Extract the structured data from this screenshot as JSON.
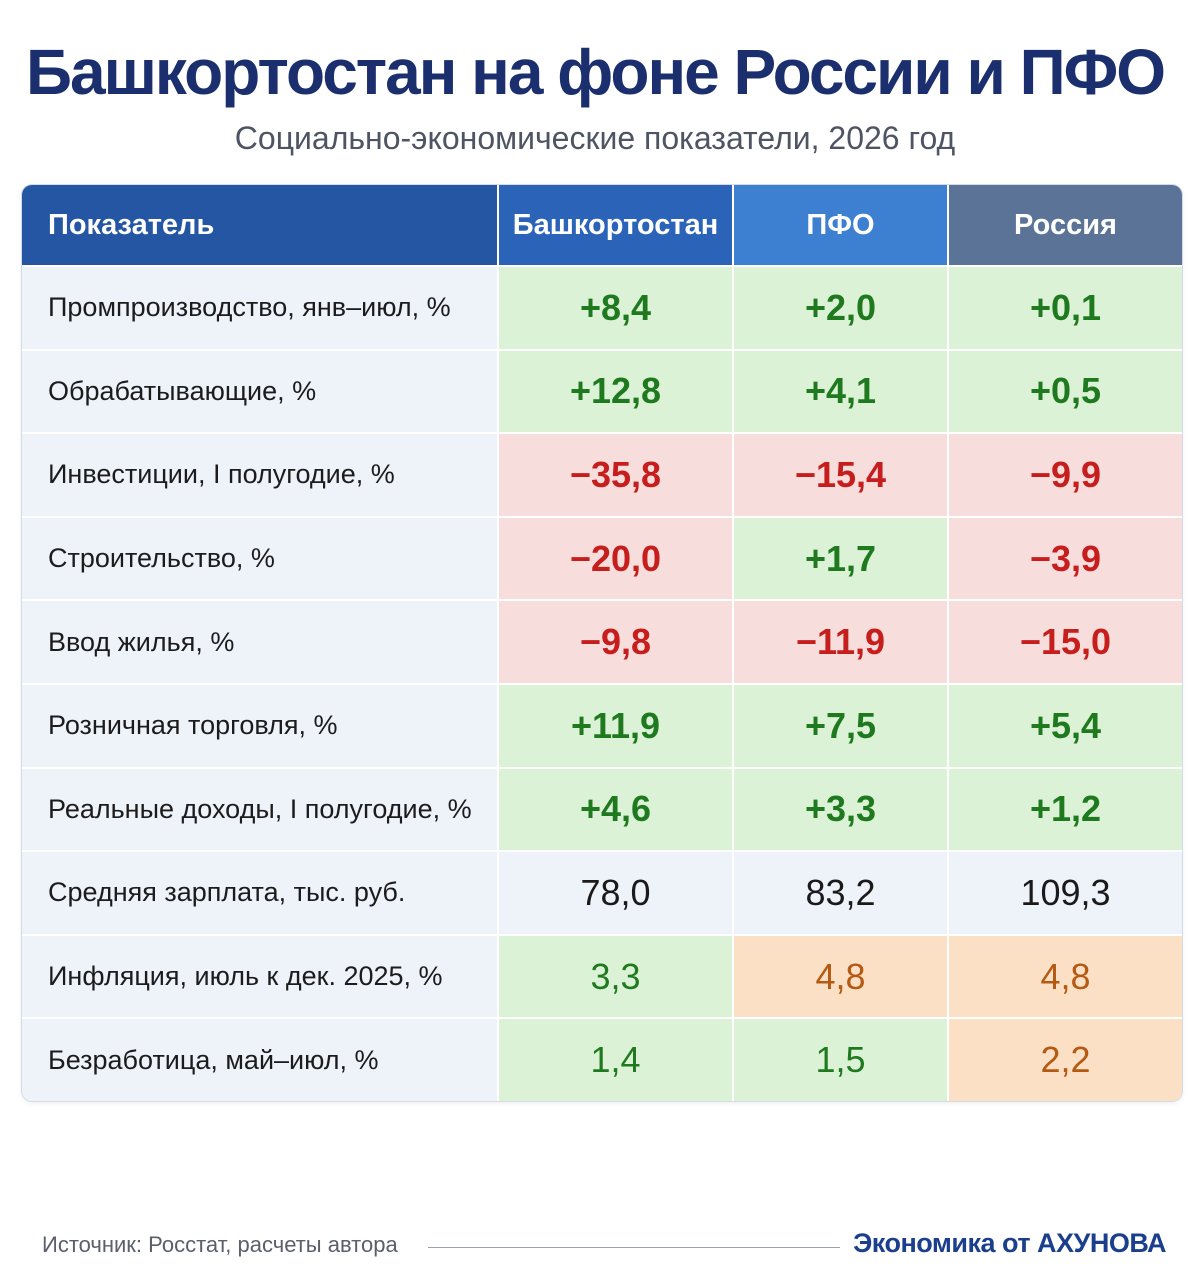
{
  "title": "Башкортостан на фоне России и ПФО",
  "subtitle": "Социально-экономические показатели, 2026 год",
  "table": {
    "headers": [
      "Показатель",
      "Башкортостан",
      "ПФО",
      "Россия"
    ],
    "rows": [
      {
        "label": "Промпроизводство, янв–июл, %",
        "values": [
          "+8,4",
          "+2,0",
          "+0,1"
        ],
        "tones": [
          "pos",
          "pos",
          "pos"
        ]
      },
      {
        "label": "Обрабатывающие, %",
        "values": [
          "+12,8",
          "+4,1",
          "+0,5"
        ],
        "tones": [
          "pos",
          "pos",
          "pos"
        ]
      },
      {
        "label": "Инвестиции, I полугодие, %",
        "values": [
          "−35,8",
          "−15,4",
          "−9,9"
        ],
        "tones": [
          "neg",
          "neg",
          "neg"
        ]
      },
      {
        "label": "Строительство, %",
        "values": [
          "−20,0",
          "+1,7",
          "−3,9"
        ],
        "tones": [
          "neg",
          "pos",
          "neg"
        ]
      },
      {
        "label": "Ввод жилья, %",
        "values": [
          "−9,8",
          "−11,9",
          "−15,0"
        ],
        "tones": [
          "neg",
          "neg",
          "neg"
        ]
      },
      {
        "label": "Розничная торговля, %",
        "values": [
          "+11,9",
          "+7,5",
          "+5,4"
        ],
        "tones": [
          "pos",
          "pos",
          "pos"
        ]
      },
      {
        "label": "Реальные доходы, I полугодие, %",
        "values": [
          "+4,6",
          "+3,3",
          "+1,2"
        ],
        "tones": [
          "pos",
          "pos",
          "pos"
        ]
      },
      {
        "label": "Средняя зарплата, тыс. руб.",
        "values": [
          "78,0",
          "83,2",
          "109,3"
        ],
        "tones": [
          "neutral",
          "neutral",
          "neutral"
        ]
      },
      {
        "label": "Инфляция, июль к дек. 2025, %",
        "values": [
          "3,3",
          "4,8",
          "4,8"
        ],
        "tones": [
          "posplain",
          "warn",
          "warn"
        ]
      },
      {
        "label": "Безработица, май–июл, %",
        "values": [
          "1,4",
          "1,5",
          "2,2"
        ],
        "tones": [
          "posplain",
          "posplain",
          "warn"
        ]
      }
    ]
  },
  "colors": {
    "title": "#1b2f6e",
    "positive": "#1f7a1f",
    "negative": "#c61d1d",
    "warning": "#b55a13",
    "header_blue": "#2456a4"
  },
  "footer": {
    "source": "Источник: Росстат, расчеты автора",
    "brand": "Экономика от АХУНОВА"
  }
}
